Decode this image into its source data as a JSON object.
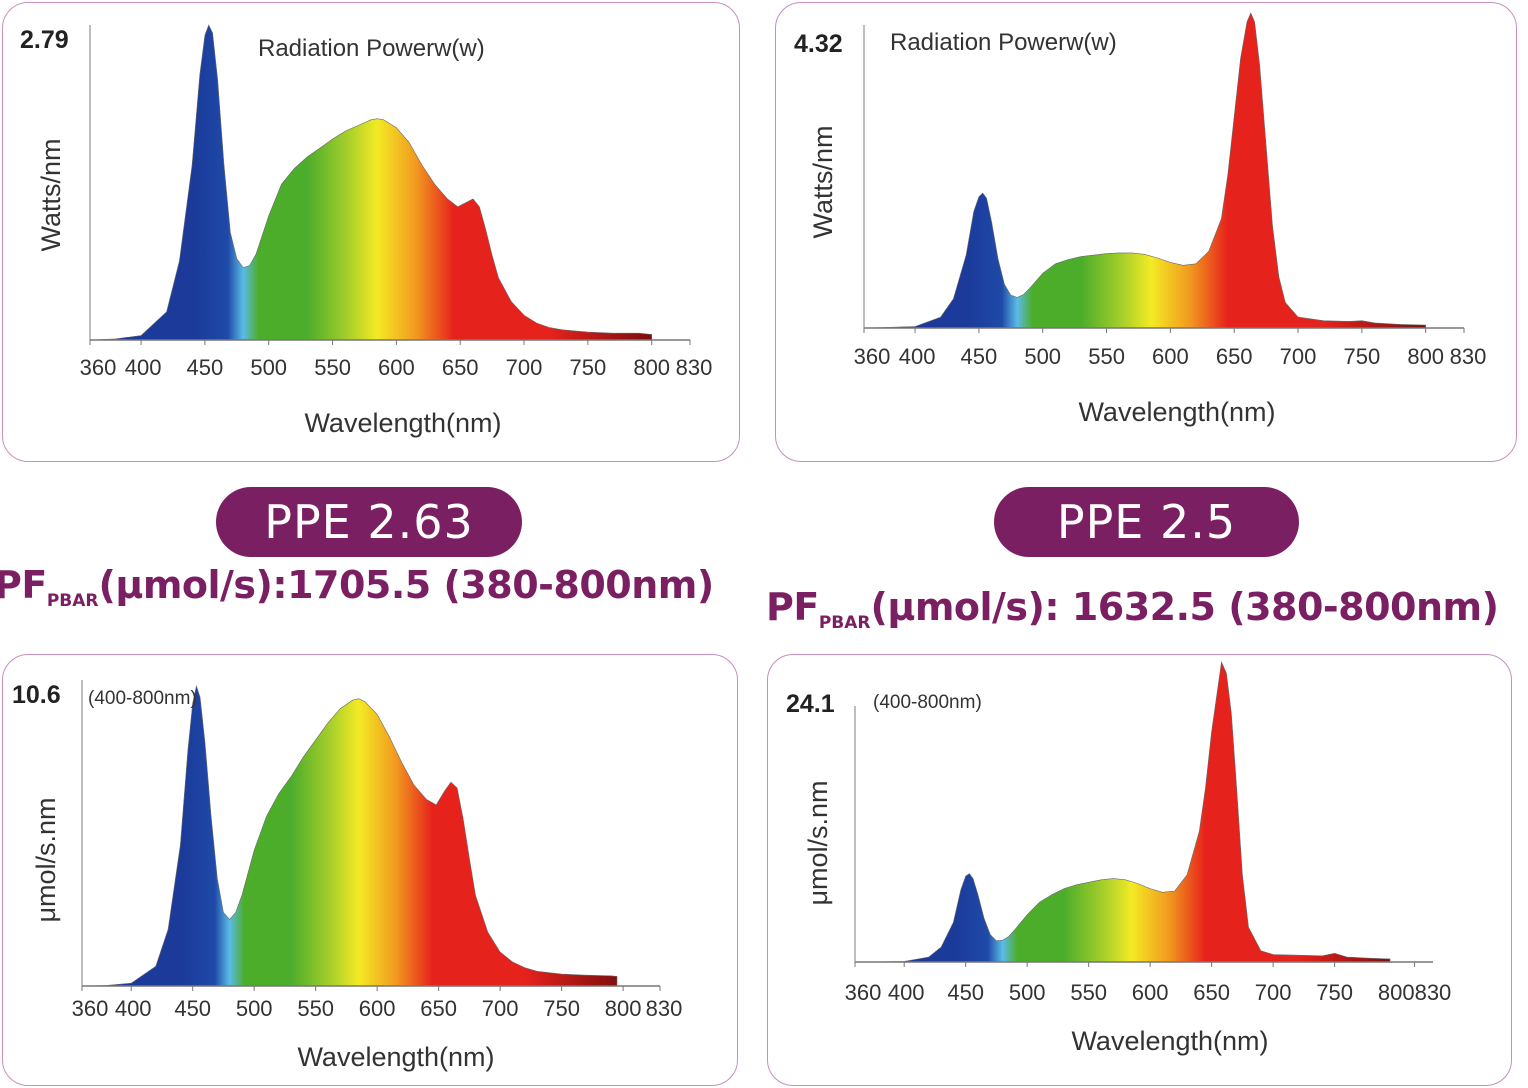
{
  "spectrum_colors": {
    "deep_blue": "#1b3a9a",
    "blue": "#1f4aa8",
    "cyan": "#5bbbe8",
    "green": "#4cad2b",
    "yellow_green": "#a6cf2a",
    "yellow": "#f3ea24",
    "orange": "#f29a1f",
    "red": "#e6221c",
    "dark_red": "#7a0e0e"
  },
  "accent_color": "#7b1f63",
  "panel_border_color": "#c98fbf",
  "left_summary": {
    "ppe": "PPE 2.63",
    "pf_prefix": "PF",
    "pf_sub": "PBAR",
    "pf_text": "(μmol/s):1705.5 (380-800nm)"
  },
  "right_summary": {
    "ppe": "PPE 2.5",
    "pf_prefix": "PF",
    "pf_sub": "PBAR",
    "pf_text": "(μmol/s): 1632.5 (380-800nm)"
  },
  "chart_data": [
    {
      "type": "area",
      "title": "Radiation Powerw(w)",
      "xlabel": "Wavelength(nm)",
      "ylabel": "Watts/nm",
      "y_max_label": "2.79",
      "xlim": [
        360,
        830
      ],
      "ylim": [
        0,
        2.79
      ],
      "xticks": [
        "360",
        "400",
        "450",
        "500",
        "550",
        "600",
        "650",
        "700",
        "750",
        "800",
        "830"
      ],
      "grid": false,
      "x": [
        360,
        380,
        400,
        420,
        430,
        440,
        446,
        450,
        453,
        456,
        460,
        465,
        470,
        475,
        480,
        485,
        490,
        500,
        510,
        520,
        530,
        540,
        550,
        560,
        570,
        580,
        585,
        590,
        600,
        610,
        620,
        630,
        640,
        648,
        655,
        660,
        665,
        670,
        675,
        680,
        690,
        700,
        710,
        720,
        730,
        750,
        770,
        790,
        800
      ],
      "values": [
        0,
        0.01,
        0.04,
        0.25,
        0.7,
        1.55,
        2.35,
        2.7,
        2.79,
        2.72,
        2.3,
        1.55,
        0.95,
        0.72,
        0.64,
        0.66,
        0.76,
        1.1,
        1.38,
        1.52,
        1.62,
        1.7,
        1.78,
        1.85,
        1.9,
        1.95,
        1.96,
        1.95,
        1.88,
        1.75,
        1.55,
        1.38,
        1.25,
        1.18,
        1.22,
        1.25,
        1.18,
        0.98,
        0.75,
        0.55,
        0.34,
        0.22,
        0.15,
        0.11,
        0.09,
        0.07,
        0.06,
        0.06,
        0.05
      ]
    },
    {
      "type": "area",
      "title": "Radiation Powerw(w)",
      "xlabel": "Wavelength(nm)",
      "ylabel": "Watts/nm",
      "y_max_label": "4.32",
      "xlim": [
        360,
        830
      ],
      "ylim": [
        0,
        4.32
      ],
      "xticks": [
        "360",
        "400",
        "450",
        "500",
        "550",
        "600",
        "650",
        "700",
        "750",
        "800",
        "830"
      ],
      "grid": false,
      "x": [
        360,
        380,
        400,
        420,
        430,
        440,
        446,
        450,
        453,
        456,
        460,
        465,
        470,
        475,
        480,
        485,
        490,
        500,
        510,
        520,
        530,
        540,
        550,
        560,
        570,
        580,
        590,
        600,
        610,
        620,
        630,
        640,
        645,
        650,
        655,
        660,
        663,
        666,
        670,
        675,
        680,
        685,
        690,
        700,
        720,
        740,
        750,
        760,
        780,
        800
      ],
      "values": [
        0,
        0.01,
        0.02,
        0.15,
        0.4,
        1.0,
        1.6,
        1.8,
        1.85,
        1.78,
        1.45,
        0.95,
        0.6,
        0.45,
        0.42,
        0.46,
        0.55,
        0.75,
        0.88,
        0.94,
        0.98,
        1.0,
        1.02,
        1.03,
        1.03,
        1.01,
        0.96,
        0.9,
        0.86,
        0.88,
        1.05,
        1.5,
        2.1,
        2.9,
        3.7,
        4.2,
        4.32,
        4.2,
        3.6,
        2.5,
        1.4,
        0.7,
        0.35,
        0.15,
        0.1,
        0.09,
        0.1,
        0.07,
        0.05,
        0.04
      ]
    },
    {
      "type": "area",
      "title": "(400-800nm)",
      "xlabel": "Wavelength(nm)",
      "ylabel": "μmol/s.nm",
      "y_max_label": "10.6",
      "xlim": [
        360,
        830
      ],
      "ylim": [
        0,
        10.6
      ],
      "xticks": [
        "360",
        "400",
        "450",
        "500",
        "550",
        "600",
        "650",
        "700",
        "750",
        "800",
        "830"
      ],
      "grid": false,
      "x": [
        360,
        380,
        400,
        420,
        430,
        440,
        446,
        450,
        453,
        456,
        460,
        465,
        470,
        475,
        480,
        485,
        490,
        500,
        510,
        520,
        530,
        540,
        550,
        560,
        570,
        580,
        585,
        590,
        600,
        610,
        620,
        630,
        640,
        648,
        655,
        660,
        665,
        670,
        675,
        680,
        690,
        700,
        710,
        720,
        730,
        750,
        770,
        790,
        795
      ],
      "values": [
        0,
        0.02,
        0.1,
        0.7,
        2.0,
        5.0,
        8.3,
        10.0,
        10.6,
        10.2,
        8.6,
        6.0,
        3.8,
        2.6,
        2.35,
        2.6,
        3.2,
        4.8,
        6.0,
        6.8,
        7.4,
        8.1,
        8.7,
        9.3,
        9.8,
        10.1,
        10.15,
        10.05,
        9.6,
        8.8,
        7.9,
        7.1,
        6.6,
        6.4,
        6.9,
        7.2,
        7.0,
        5.9,
        4.5,
        3.2,
        1.9,
        1.2,
        0.85,
        0.65,
        0.52,
        0.42,
        0.38,
        0.36,
        0.34
      ]
    },
    {
      "type": "area",
      "title": "(400-800nm)",
      "xlabel": "Wavelength(nm)",
      "ylabel": "μmol/s.nm",
      "y_max_label": "24.1",
      "xlim": [
        360,
        830
      ],
      "ylim": [
        0,
        24.1
      ],
      "xticks": [
        "360",
        "400",
        "450",
        "500",
        "550",
        "600",
        "650",
        "700",
        "750",
        "800830"
      ],
      "grid": false,
      "x": [
        360,
        380,
        400,
        420,
        430,
        440,
        446,
        450,
        453,
        456,
        460,
        465,
        470,
        475,
        480,
        485,
        490,
        500,
        510,
        520,
        530,
        540,
        550,
        560,
        570,
        580,
        590,
        600,
        610,
        620,
        630,
        640,
        645,
        650,
        655,
        658,
        662,
        666,
        670,
        675,
        680,
        690,
        700,
        720,
        740,
        750,
        760,
        780,
        795
      ],
      "values": [
        0,
        0.02,
        0.05,
        0.4,
        1.2,
        3.2,
        5.8,
        6.9,
        7.1,
        6.7,
        5.4,
        3.5,
        2.2,
        1.7,
        1.75,
        2.05,
        2.6,
        3.8,
        4.8,
        5.4,
        5.9,
        6.2,
        6.4,
        6.6,
        6.7,
        6.6,
        6.3,
        5.9,
        5.6,
        5.7,
        7.0,
        10.5,
        14.0,
        18.5,
        22.0,
        24.1,
        23.2,
        20.0,
        14.5,
        7.0,
        2.8,
        0.9,
        0.6,
        0.55,
        0.5,
        0.7,
        0.4,
        0.3,
        0.25
      ]
    }
  ]
}
